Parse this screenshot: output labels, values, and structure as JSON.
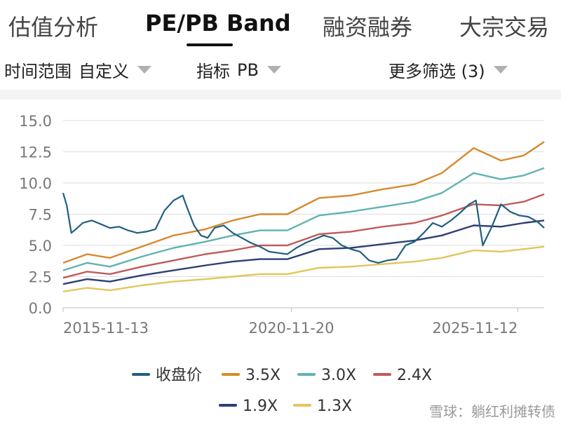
{
  "tabs": [
    {
      "label": "估值分析",
      "active": false
    },
    {
      "label": "PE/PB Band",
      "active": true
    },
    {
      "label": "融资融券",
      "active": false
    },
    {
      "label": "大宗交易",
      "active": false
    }
  ],
  "filters": {
    "time_range_label": "时间范围",
    "time_range_value": "自定义",
    "indicator_label": "指标",
    "indicator_value": "PB",
    "more_filters": "更多筛选 (3)"
  },
  "watermark": "雪球：躺红利摊转债",
  "chart_data": {
    "type": "line",
    "title": "",
    "xlabel": "",
    "ylabel": "",
    "x_ticks": [
      "2015-11-13",
      "2020-11-20",
      "2025-11-12"
    ],
    "x_tick_years": [
      2015.87,
      2020.89,
      2025.87
    ],
    "xlim": [
      2015.87,
      2026.45
    ],
    "y_ticks": [
      0.0,
      2.5,
      5.0,
      7.5,
      10.0,
      12.5,
      15.0
    ],
    "ylim": [
      0,
      15
    ],
    "grid": true,
    "legend_position": "bottom",
    "colors": {
      "close": "#1f5f80",
      "band_3_5x": "#d58a2c",
      "band_3_0x": "#5fb3b0",
      "band_2_4x": "#c05b5b",
      "band_1_9x": "#2e3f73",
      "band_1_3x": "#e3c55a"
    },
    "series": [
      {
        "key": "close",
        "name": "收盘价",
        "color": "#1f5f80",
        "x": [
          2015.87,
          2015.95,
          2016.05,
          2016.15,
          2016.3,
          2016.5,
          2016.7,
          2016.9,
          2017.1,
          2017.3,
          2017.5,
          2017.7,
          2017.9,
          2018.1,
          2018.3,
          2018.5,
          2018.6,
          2018.75,
          2018.9,
          2019.05,
          2019.2,
          2019.4,
          2019.6,
          2019.8,
          2020.0,
          2020.2,
          2020.4,
          2020.6,
          2020.8,
          2021.0,
          2021.2,
          2021.4,
          2021.6,
          2021.8,
          2022.0,
          2022.2,
          2022.4,
          2022.6,
          2022.8,
          2023.0,
          2023.2,
          2023.4,
          2023.6,
          2023.8,
          2024.0,
          2024.2,
          2024.4,
          2024.6,
          2024.8,
          2024.95,
          2025.1,
          2025.3,
          2025.5,
          2025.7,
          2025.9,
          2026.1,
          2026.3,
          2026.45
        ],
        "y": [
          9.2,
          8.2,
          6.0,
          6.3,
          6.8,
          7.0,
          6.7,
          6.4,
          6.5,
          6.2,
          6.0,
          6.1,
          6.3,
          7.8,
          8.6,
          9.0,
          8.0,
          6.6,
          5.8,
          5.6,
          6.4,
          6.6,
          6.0,
          5.6,
          5.2,
          4.9,
          4.5,
          4.4,
          4.3,
          4.8,
          5.2,
          5.5,
          5.8,
          5.6,
          5.0,
          4.7,
          4.5,
          3.8,
          3.6,
          3.8,
          3.9,
          5.0,
          5.3,
          6.0,
          6.8,
          6.5,
          7.0,
          7.6,
          8.3,
          8.6,
          5.0,
          6.5,
          8.3,
          7.7,
          7.4,
          7.3,
          6.9,
          6.4
        ]
      },
      {
        "key": "band_3_5x",
        "name": "3.5X",
        "color": "#d58a2c",
        "x": [
          2015.87,
          2016.4,
          2016.9,
          2017.6,
          2018.3,
          2019.0,
          2019.6,
          2020.2,
          2020.8,
          2021.5,
          2022.2,
          2022.9,
          2023.6,
          2024.2,
          2024.9,
          2025.5,
          2026.0,
          2026.45
        ],
        "y": [
          3.6,
          4.3,
          4.0,
          4.9,
          5.8,
          6.3,
          7.0,
          7.5,
          7.5,
          8.8,
          9.0,
          9.5,
          9.9,
          10.8,
          12.8,
          11.8,
          12.2,
          13.3
        ]
      },
      {
        "key": "band_3_0x",
        "name": "3.0X",
        "color": "#5fb3b0",
        "x": [
          2015.87,
          2016.4,
          2016.9,
          2017.6,
          2018.3,
          2019.0,
          2019.6,
          2020.2,
          2020.8,
          2021.5,
          2022.2,
          2022.9,
          2023.6,
          2024.2,
          2024.9,
          2025.5,
          2026.0,
          2026.45
        ],
        "y": [
          3.0,
          3.6,
          3.3,
          4.1,
          4.8,
          5.3,
          5.8,
          6.2,
          6.2,
          7.4,
          7.7,
          8.1,
          8.5,
          9.2,
          10.8,
          10.3,
          10.6,
          11.2
        ]
      },
      {
        "key": "band_2_4x",
        "name": "2.4X",
        "color": "#c05b5b",
        "x": [
          2015.87,
          2016.4,
          2016.9,
          2017.6,
          2018.3,
          2019.0,
          2019.6,
          2020.2,
          2020.8,
          2021.5,
          2022.2,
          2022.9,
          2023.6,
          2024.2,
          2024.9,
          2025.5,
          2026.0,
          2026.45
        ],
        "y": [
          2.4,
          2.9,
          2.7,
          3.3,
          3.8,
          4.3,
          4.6,
          5.0,
          5.0,
          5.9,
          6.1,
          6.5,
          6.8,
          7.4,
          8.3,
          8.2,
          8.5,
          9.1
        ]
      },
      {
        "key": "band_1_9x",
        "name": "1.9X",
        "color": "#2e3f73",
        "x": [
          2015.87,
          2016.4,
          2016.9,
          2017.6,
          2018.3,
          2019.0,
          2019.6,
          2020.2,
          2020.8,
          2021.5,
          2022.2,
          2022.9,
          2023.6,
          2024.2,
          2024.9,
          2025.5,
          2026.0,
          2026.45
        ],
        "y": [
          1.9,
          2.3,
          2.1,
          2.6,
          3.0,
          3.4,
          3.7,
          3.9,
          3.9,
          4.7,
          4.8,
          5.1,
          5.4,
          5.8,
          6.6,
          6.5,
          6.8,
          7.0
        ]
      },
      {
        "key": "band_1_3x",
        "name": "1.3X",
        "color": "#e3c55a",
        "x": [
          2015.87,
          2016.4,
          2016.9,
          2017.6,
          2018.3,
          2019.0,
          2019.6,
          2020.2,
          2020.8,
          2021.5,
          2022.2,
          2022.9,
          2023.6,
          2024.2,
          2024.9,
          2025.5,
          2026.0,
          2026.45
        ],
        "y": [
          1.3,
          1.6,
          1.4,
          1.8,
          2.1,
          2.3,
          2.5,
          2.7,
          2.7,
          3.2,
          3.3,
          3.5,
          3.7,
          4.0,
          4.6,
          4.5,
          4.7,
          4.9
        ]
      }
    ]
  }
}
